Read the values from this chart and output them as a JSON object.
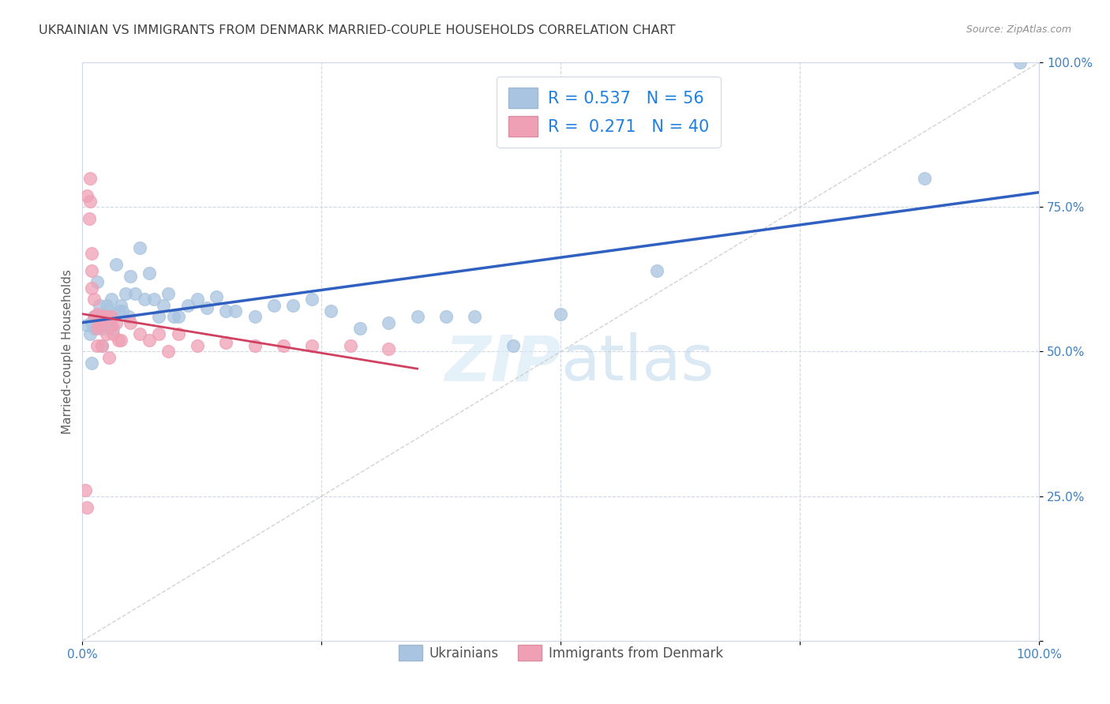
{
  "title": "UKRAINIAN VS IMMIGRANTS FROM DENMARK MARRIED-COUPLE HOUSEHOLDS CORRELATION CHART",
  "source": "Source: ZipAtlas.com",
  "ylabel": "Married-couple Households",
  "xlabel": "",
  "xlim": [
    0,
    1.0
  ],
  "ylim": [
    0,
    1.0
  ],
  "watermark": "ZIPatlas",
  "blue_R": 0.537,
  "blue_N": 56,
  "pink_R": 0.271,
  "pink_N": 40,
  "blue_color": "#a8c4e0",
  "pink_color": "#f0a0b5",
  "line_blue": "#3060c0",
  "line_pink": "#d04060",
  "line_diag": "#c8c8c8",
  "legend_R_color": "#2080e0",
  "blue_x": [
    0.005,
    0.008,
    0.01,
    0.01,
    0.012,
    0.013,
    0.015,
    0.015,
    0.018,
    0.02,
    0.02,
    0.022,
    0.025,
    0.025,
    0.028,
    0.03,
    0.03,
    0.032,
    0.035,
    0.038,
    0.04,
    0.042,
    0.045,
    0.048,
    0.05,
    0.055,
    0.06,
    0.065,
    0.07,
    0.075,
    0.08,
    0.085,
    0.09,
    0.095,
    0.1,
    0.11,
    0.12,
    0.13,
    0.14,
    0.15,
    0.16,
    0.18,
    0.2,
    0.22,
    0.24,
    0.26,
    0.29,
    0.32,
    0.35,
    0.38,
    0.41,
    0.45,
    0.5,
    0.6,
    0.88,
    0.98
  ],
  "blue_y": [
    0.545,
    0.53,
    0.55,
    0.48,
    0.56,
    0.54,
    0.62,
    0.56,
    0.58,
    0.54,
    0.51,
    0.555,
    0.545,
    0.58,
    0.57,
    0.56,
    0.59,
    0.54,
    0.65,
    0.57,
    0.58,
    0.57,
    0.6,
    0.56,
    0.63,
    0.6,
    0.68,
    0.59,
    0.635,
    0.59,
    0.56,
    0.58,
    0.6,
    0.56,
    0.56,
    0.58,
    0.59,
    0.575,
    0.595,
    0.57,
    0.57,
    0.56,
    0.58,
    0.58,
    0.59,
    0.57,
    0.54,
    0.55,
    0.56,
    0.56,
    0.56,
    0.51,
    0.565,
    0.64,
    0.8,
    1.0
  ],
  "pink_x": [
    0.003,
    0.005,
    0.005,
    0.007,
    0.008,
    0.008,
    0.01,
    0.01,
    0.01,
    0.012,
    0.013,
    0.015,
    0.015,
    0.015,
    0.018,
    0.02,
    0.02,
    0.022,
    0.025,
    0.025,
    0.028,
    0.03,
    0.03,
    0.032,
    0.035,
    0.038,
    0.04,
    0.05,
    0.06,
    0.07,
    0.08,
    0.09,
    0.1,
    0.12,
    0.15,
    0.18,
    0.21,
    0.24,
    0.28,
    0.32
  ],
  "pink_y": [
    0.26,
    0.23,
    0.77,
    0.73,
    0.8,
    0.76,
    0.67,
    0.64,
    0.61,
    0.59,
    0.56,
    0.565,
    0.54,
    0.51,
    0.545,
    0.555,
    0.51,
    0.56,
    0.56,
    0.53,
    0.49,
    0.56,
    0.545,
    0.53,
    0.55,
    0.52,
    0.52,
    0.55,
    0.53,
    0.52,
    0.53,
    0.5,
    0.53,
    0.51,
    0.515,
    0.51,
    0.51,
    0.51,
    0.51,
    0.505
  ],
  "background_color": "#ffffff",
  "grid_color": "#d0d8e8",
  "title_color": "#404040",
  "axis_color": "#4080c0"
}
